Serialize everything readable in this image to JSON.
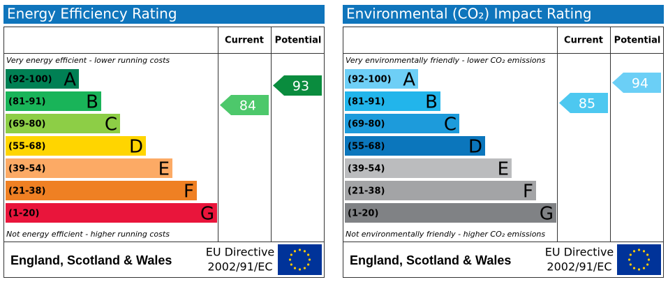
{
  "panels": [
    {
      "title": "Energy Efficiency Rating",
      "headers": [
        "Current",
        "Potential"
      ],
      "top_note": "Very energy efficient - lower running costs",
      "bottom_note": "Not energy efficient - higher running costs",
      "bands": [
        {
          "range": "(92-100)",
          "letter": "A",
          "color": "#008054"
        },
        {
          "range": "(81-91)",
          "letter": "B",
          "color": "#19b459"
        },
        {
          "range": "(69-80)",
          "letter": "C",
          "color": "#8dce46"
        },
        {
          "range": "(55-68)",
          "letter": "D",
          "color": "#ffd500"
        },
        {
          "range": "(39-54)",
          "letter": "E",
          "color": "#fcaa65"
        },
        {
          "range": "(21-38)",
          "letter": "F",
          "color": "#ef8023"
        },
        {
          "range": "(1-20)",
          "letter": "G",
          "color": "#e9153b"
        }
      ],
      "current": 84,
      "current_color": "#4dc86b",
      "potential": 93,
      "potential_color": "#0a8c3e",
      "footer": {
        "region": "England, Scotland & Wales",
        "directive": "EU Directive",
        "code": "2002/91/EC"
      }
    },
    {
      "title": "Environmental (CO₂) Impact Rating",
      "headers": [
        "Current",
        "Potential"
      ],
      "top_note": "Very environmentally friendly - lower CO₂ emissions",
      "bottom_note": "Not environmentally friendly - higher CO₂ emissions",
      "bands": [
        {
          "range": "(92-100)",
          "letter": "A",
          "color": "#6ecff6"
        },
        {
          "range": "(81-91)",
          "letter": "B",
          "color": "#22b5eb"
        },
        {
          "range": "(69-80)",
          "letter": "C",
          "color": "#1d9bdb"
        },
        {
          "range": "(55-68)",
          "letter": "D",
          "color": "#0b76bc"
        },
        {
          "range": "(39-54)",
          "letter": "E",
          "color": "#bbbcbe"
        },
        {
          "range": "(21-38)",
          "letter": "F",
          "color": "#a3a4a6"
        },
        {
          "range": "(1-20)",
          "letter": "G",
          "color": "#808285"
        }
      ],
      "current": 85,
      "current_color": "#4dc8f0",
      "potential": 94,
      "potential_color": "#6bcff6",
      "footer": {
        "region": "England, Scotland & Wales",
        "directive": "EU Directive",
        "code": "2002/91/EC"
      }
    }
  ]
}
